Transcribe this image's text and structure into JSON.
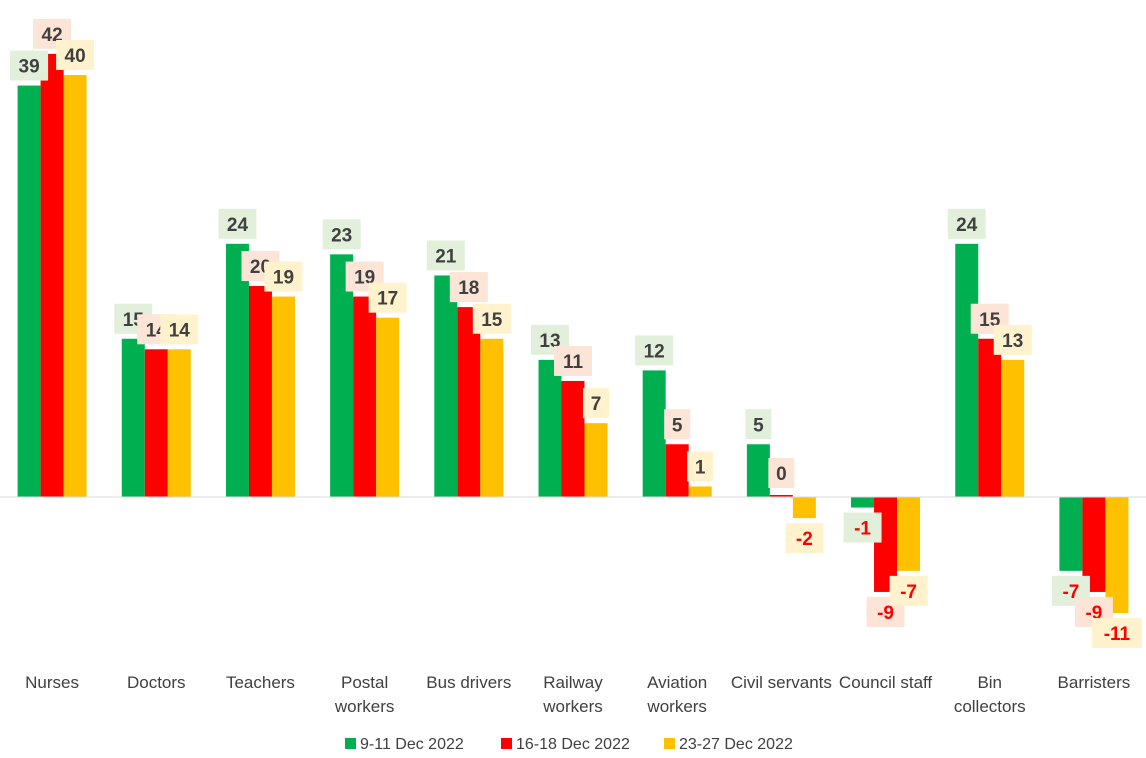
{
  "chart_data": {
    "type": "bar",
    "title": "",
    "xlabel": "",
    "ylabel": "",
    "ylim": [
      -14,
      44
    ],
    "grid": false,
    "legend_position": "bottom",
    "categories": [
      [
        "Nurses"
      ],
      [
        "Doctors"
      ],
      [
        "Teachers"
      ],
      [
        "Postal",
        "workers"
      ],
      [
        "Bus drivers"
      ],
      [
        "Railway",
        "workers"
      ],
      [
        "Aviation",
        "workers"
      ],
      [
        "Civil servants"
      ],
      [
        "Council staff"
      ],
      [
        "Bin",
        "collectors"
      ],
      [
        "Barristers"
      ]
    ],
    "series": [
      {
        "name": "9-11 Dec 2022",
        "color": "#00B050",
        "label_bg": "#E2EFDA",
        "values": [
          39,
          15,
          24,
          23,
          21,
          13,
          12,
          5,
          -1,
          24,
          -7
        ]
      },
      {
        "name": "16-18 Dec 2022",
        "color": "#FF0000",
        "label_bg": "#FCE4D6",
        "values": [
          42,
          14,
          20,
          19,
          18,
          11,
          5,
          0,
          -9,
          15,
          -9
        ]
      },
      {
        "name": "23-27 Dec 2022",
        "color": "#FFC000",
        "label_bg": "#FFF2CC",
        "values": [
          40,
          14,
          19,
          17,
          15,
          7,
          1,
          -2,
          -7,
          13,
          -11
        ]
      }
    ],
    "positive_label_color": "#404040",
    "negative_label_color": "#FF0000"
  }
}
